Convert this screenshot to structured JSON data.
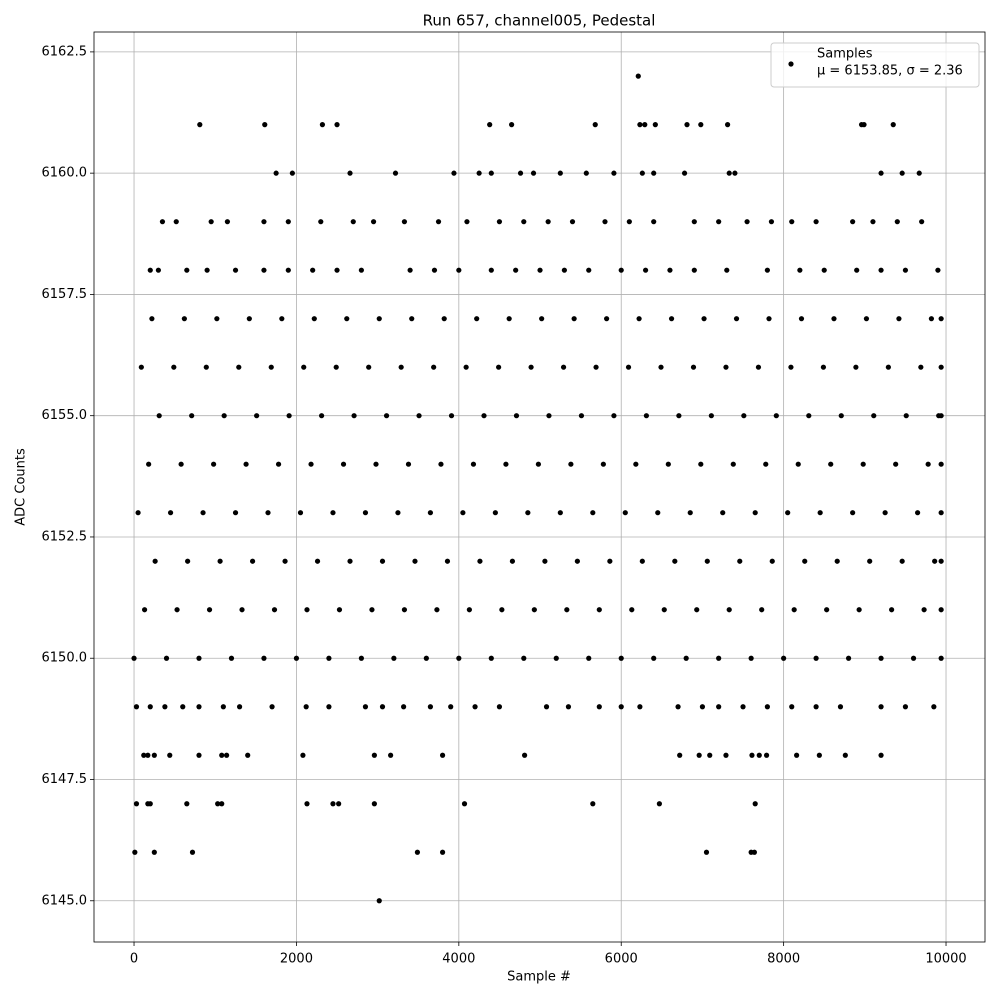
{
  "chart_data": {
    "type": "scatter",
    "title": "Run 657, channel005, Pedestal",
    "x_label": "Sample #",
    "y_label": "ADC Counts",
    "legend_position": "upper right",
    "legend_note": "μ = 6153.85, σ = 2.36",
    "grid": true,
    "xlim": [
      -493,
      10480
    ],
    "ylim": [
      6144.15,
      6162.91
    ],
    "xticks": [
      0,
      2000,
      4000,
      6000,
      8000,
      10000
    ],
    "yticks": [
      {
        "value": 6145,
        "label": "6145.0"
      },
      {
        "value": 6147.5,
        "label": "6147.5"
      },
      {
        "value": 6150,
        "label": "6150.0"
      },
      {
        "value": 6152.5,
        "label": "6152.5"
      },
      {
        "value": 6155,
        "label": "6155.0"
      },
      {
        "value": 6157.5,
        "label": "6157.5"
      },
      {
        "value": 6160,
        "label": "6160.0"
      },
      {
        "value": 6162.5,
        "label": "6162.5"
      }
    ],
    "series": [
      {
        "name": "Samples",
        "color": "#000000",
        "x": [
          3020,
          10,
          250,
          720,
          3490,
          3800,
          7050,
          7600,
          7640,
          30,
          170,
          200,
          650,
          1030,
          1080,
          2130,
          2450,
          2520,
          2960,
          4070,
          5650,
          6470,
          7650,
          120,
          170,
          250,
          440,
          800,
          1080,
          1140,
          1400,
          2080,
          2960,
          3160,
          3800,
          4810,
          6720,
          6960,
          7090,
          7290,
          7610,
          7700,
          7790,
          8160,
          8440,
          8760,
          9200,
          30,
          200,
          380,
          600,
          800,
          1100,
          1300,
          1700,
          2120,
          2400,
          2850,
          3060,
          3320,
          3650,
          3900,
          4200,
          4500,
          5080,
          5350,
          5730,
          6000,
          6230,
          6700,
          7000,
          7200,
          7500,
          7800,
          8100,
          8400,
          8700,
          9200,
          9500,
          9850,
          0,
          400,
          800,
          1200,
          1600,
          2000,
          2400,
          2800,
          3200,
          3600,
          4000,
          4400,
          4800,
          5200,
          5600,
          6000,
          6400,
          6800,
          7200,
          7600,
          8000,
          8400,
          8800,
          9200,
          9600,
          9940,
          130,
          530,
          930,
          1330,
          1730,
          2130,
          2530,
          2930,
          3330,
          3730,
          4130,
          4530,
          4930,
          5330,
          5730,
          6130,
          6530,
          6930,
          7330,
          7730,
          8130,
          8530,
          8930,
          9330,
          9730,
          9940,
          260,
          660,
          1060,
          1460,
          1860,
          2260,
          2660,
          3060,
          3460,
          3860,
          4260,
          4660,
          5060,
          5460,
          5860,
          6260,
          6660,
          7060,
          7460,
          7860,
          8260,
          8660,
          9060,
          9460,
          9860,
          9940,
          50,
          450,
          850,
          1250,
          1650,
          2050,
          2450,
          2850,
          3250,
          3650,
          4050,
          4450,
          4850,
          5250,
          5650,
          6050,
          6450,
          6850,
          7250,
          7650,
          8050,
          8450,
          8850,
          9250,
          9650,
          9940,
          180,
          580,
          980,
          1380,
          1780,
          2180,
          2580,
          2980,
          3380,
          3780,
          4180,
          4580,
          4980,
          5380,
          5780,
          6180,
          6580,
          6980,
          7380,
          7780,
          8180,
          8580,
          8980,
          9380,
          9780,
          9940,
          310,
          710,
          1110,
          1510,
          1910,
          2310,
          2710,
          3110,
          3510,
          3910,
          4310,
          4710,
          5110,
          5510,
          5910,
          6310,
          6710,
          7110,
          7510,
          7910,
          8310,
          8710,
          9110,
          9510,
          9910,
          9940,
          90,
          490,
          890,
          1290,
          1690,
          2090,
          2490,
          2890,
          3290,
          3690,
          4090,
          4490,
          4890,
          5290,
          5690,
          6090,
          6490,
          6890,
          7290,
          7690,
          8090,
          8490,
          8890,
          9290,
          9690,
          9940,
          220,
          620,
          1020,
          1420,
          1820,
          2220,
          2620,
          3020,
          3420,
          3820,
          4220,
          4620,
          5020,
          5420,
          5820,
          6220,
          6620,
          7020,
          7420,
          7820,
          8220,
          8620,
          9020,
          9420,
          9820,
          9940,
          200,
          300,
          650,
          900,
          1250,
          1600,
          1900,
          2200,
          2500,
          2800,
          3400,
          3700,
          4000,
          4400,
          4700,
          5000,
          5300,
          5600,
          6000,
          6300,
          6600,
          6900,
          7300,
          7800,
          8200,
          8500,
          8900,
          9200,
          9500,
          9900,
          350,
          520,
          950,
          1150,
          1600,
          1900,
          2300,
          2700,
          2950,
          3330,
          3750,
          4100,
          4500,
          4800,
          5100,
          5400,
          5800,
          6100,
          6400,
          6900,
          7200,
          7550,
          7850,
          8100,
          8400,
          8850,
          9100,
          9400,
          9700,
          1750,
          1950,
          2660,
          3220,
          3940,
          4250,
          4400,
          4760,
          4920,
          5250,
          5570,
          5910,
          6260,
          6400,
          6780,
          7330,
          7400,
          9200,
          9460,
          9670,
          810,
          1610,
          2320,
          2500,
          4380,
          4650,
          5680,
          6230,
          6290,
          6420,
          6810,
          6980,
          7310,
          8960,
          8990,
          9350,
          6210
        ],
        "values": [
          6145,
          6146,
          6146,
          6146,
          6146,
          6146,
          6146,
          6146,
          6146,
          6147,
          6147,
          6147,
          6147,
          6147,
          6147,
          6147,
          6147,
          6147,
          6147,
          6147,
          6147,
          6147,
          6147,
          6148,
          6148,
          6148,
          6148,
          6148,
          6148,
          6148,
          6148,
          6148,
          6148,
          6148,
          6148,
          6148,
          6148,
          6148,
          6148,
          6148,
          6148,
          6148,
          6148,
          6148,
          6148,
          6148,
          6148,
          6149,
          6149,
          6149,
          6149,
          6149,
          6149,
          6149,
          6149,
          6149,
          6149,
          6149,
          6149,
          6149,
          6149,
          6149,
          6149,
          6149,
          6149,
          6149,
          6149,
          6149,
          6149,
          6149,
          6149,
          6149,
          6149,
          6149,
          6149,
          6149,
          6149,
          6149,
          6149,
          6149,
          6150,
          6150,
          6150,
          6150,
          6150,
          6150,
          6150,
          6150,
          6150,
          6150,
          6150,
          6150,
          6150,
          6150,
          6150,
          6150,
          6150,
          6150,
          6150,
          6150,
          6150,
          6150,
          6150,
          6150,
          6150,
          6150,
          6151,
          6151,
          6151,
          6151,
          6151,
          6151,
          6151,
          6151,
          6151,
          6151,
          6151,
          6151,
          6151,
          6151,
          6151,
          6151,
          6151,
          6151,
          6151,
          6151,
          6151,
          6151,
          6151,
          6151,
          6151,
          6151,
          6152,
          6152,
          6152,
          6152,
          6152,
          6152,
          6152,
          6152,
          6152,
          6152,
          6152,
          6152,
          6152,
          6152,
          6152,
          6152,
          6152,
          6152,
          6152,
          6152,
          6152,
          6152,
          6152,
          6152,
          6152,
          6152,
          6153,
          6153,
          6153,
          6153,
          6153,
          6153,
          6153,
          6153,
          6153,
          6153,
          6153,
          6153,
          6153,
          6153,
          6153,
          6153,
          6153,
          6153,
          6153,
          6153,
          6153,
          6153,
          6153,
          6153,
          6153,
          6153,
          6154,
          6154,
          6154,
          6154,
          6154,
          6154,
          6154,
          6154,
          6154,
          6154,
          6154,
          6154,
          6154,
          6154,
          6154,
          6154,
          6154,
          6154,
          6154,
          6154,
          6154,
          6154,
          6154,
          6154,
          6154,
          6154,
          6155,
          6155,
          6155,
          6155,
          6155,
          6155,
          6155,
          6155,
          6155,
          6155,
          6155,
          6155,
          6155,
          6155,
          6155,
          6155,
          6155,
          6155,
          6155,
          6155,
          6155,
          6155,
          6155,
          6155,
          6155,
          6155,
          6156,
          6156,
          6156,
          6156,
          6156,
          6156,
          6156,
          6156,
          6156,
          6156,
          6156,
          6156,
          6156,
          6156,
          6156,
          6156,
          6156,
          6156,
          6156,
          6156,
          6156,
          6156,
          6156,
          6156,
          6156,
          6156,
          6157,
          6157,
          6157,
          6157,
          6157,
          6157,
          6157,
          6157,
          6157,
          6157,
          6157,
          6157,
          6157,
          6157,
          6157,
          6157,
          6157,
          6157,
          6157,
          6157,
          6157,
          6157,
          6157,
          6157,
          6157,
          6157,
          6158,
          6158,
          6158,
          6158,
          6158,
          6158,
          6158,
          6158,
          6158,
          6158,
          6158,
          6158,
          6158,
          6158,
          6158,
          6158,
          6158,
          6158,
          6158,
          6158,
          6158,
          6158,
          6158,
          6158,
          6158,
          6158,
          6158,
          6158,
          6158,
          6158,
          6159,
          6159,
          6159,
          6159,
          6159,
          6159,
          6159,
          6159,
          6159,
          6159,
          6159,
          6159,
          6159,
          6159,
          6159,
          6159,
          6159,
          6159,
          6159,
          6159,
          6159,
          6159,
          6159,
          6159,
          6159,
          6159,
          6159,
          6159,
          6159,
          6160,
          6160,
          6160,
          6160,
          6160,
          6160,
          6160,
          6160,
          6160,
          6160,
          6160,
          6160,
          6160,
          6160,
          6160,
          6160,
          6160,
          6160,
          6160,
          6160,
          6161,
          6161,
          6161,
          6161,
          6161,
          6161,
          6161,
          6161,
          6161,
          6161,
          6161,
          6161,
          6161,
          6161,
          6161,
          6161,
          6162
        ]
      }
    ]
  }
}
